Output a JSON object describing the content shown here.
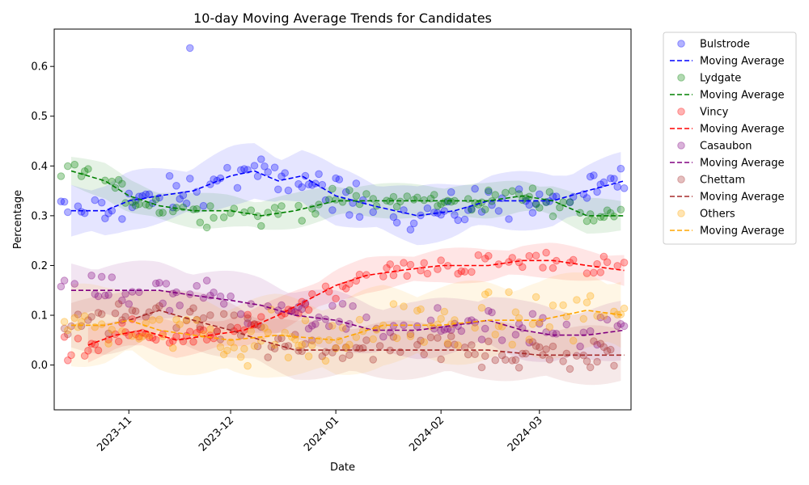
{
  "chart_data": {
    "type": "scatter",
    "title": "10-day Moving Average Trends for Candidates",
    "xlabel": "Date",
    "ylabel": "Percentage",
    "x_range": [
      "2023-10-10",
      "2024-03-28"
    ],
    "ylim": [
      -0.09,
      0.675
    ],
    "y_ticks": [
      0.0,
      0.1,
      0.2,
      0.3,
      0.4,
      0.5,
      0.6
    ],
    "x_ticks": [
      "2023-11",
      "2023-12",
      "2024-01",
      "2024-02",
      "2024-03"
    ],
    "x_tick_rotation_deg": 45,
    "grid": false,
    "legend_placement": "outside-right",
    "series": [
      {
        "name": "Bulstrode",
        "ma_label": "Moving Average",
        "color": "#0000ff",
        "band_color": "#b3b3f5",
        "ma_points": [
          [
            "2023-10-15",
            0.31
          ],
          [
            "2023-10-25",
            0.31
          ],
          [
            "2023-11-01",
            0.33
          ],
          [
            "2023-11-10",
            0.34
          ],
          [
            "2023-11-20",
            0.35
          ],
          [
            "2023-12-01",
            0.38
          ],
          [
            "2023-12-08",
            0.39
          ],
          [
            "2023-12-15",
            0.37
          ],
          [
            "2023-12-22",
            0.38
          ],
          [
            "2024-01-01",
            0.34
          ],
          [
            "2024-01-12",
            0.32
          ],
          [
            "2024-01-25",
            0.3
          ],
          [
            "2024-02-05",
            0.31
          ],
          [
            "2024-02-15",
            0.33
          ],
          [
            "2024-02-25",
            0.33
          ],
          [
            "2024-03-05",
            0.33
          ],
          [
            "2024-03-15",
            0.35
          ],
          [
            "2024-03-26",
            0.37
          ]
        ],
        "band_halfwidth": 0.05,
        "outlier": [
          "2023-11-19",
          0.637
        ]
      },
      {
        "name": "Lydgate",
        "ma_label": "Moving Average",
        "color": "#008000",
        "band_color": "#b3dbb3",
        "ma_points": [
          [
            "2023-10-15",
            0.39
          ],
          [
            "2023-10-25",
            0.37
          ],
          [
            "2023-11-01",
            0.34
          ],
          [
            "2023-11-10",
            0.32
          ],
          [
            "2023-11-20",
            0.31
          ],
          [
            "2023-12-01",
            0.31
          ],
          [
            "2023-12-10",
            0.3
          ],
          [
            "2023-12-20",
            0.31
          ],
          [
            "2024-01-01",
            0.33
          ],
          [
            "2024-01-15",
            0.33
          ],
          [
            "2024-01-25",
            0.33
          ],
          [
            "2024-02-05",
            0.33
          ],
          [
            "2024-02-15",
            0.33
          ],
          [
            "2024-02-25",
            0.34
          ],
          [
            "2024-03-05",
            0.33
          ],
          [
            "2024-03-15",
            0.3
          ],
          [
            "2024-03-26",
            0.3
          ]
        ],
        "band_halfwidth": 0.03
      },
      {
        "name": "Vincy",
        "ma_label": "Moving Average",
        "color": "#ff0000",
        "band_color": "#f8c0c0",
        "ma_points": [
          [
            "2023-10-20",
            0.04
          ],
          [
            "2023-10-28",
            0.06
          ],
          [
            "2023-11-05",
            0.07
          ],
          [
            "2023-11-15",
            0.05
          ],
          [
            "2023-11-25",
            0.06
          ],
          [
            "2023-12-05",
            0.07
          ],
          [
            "2023-12-15",
            0.1
          ],
          [
            "2024-01-01",
            0.16
          ],
          [
            "2024-01-10",
            0.18
          ],
          [
            "2024-01-20",
            0.19
          ],
          [
            "2024-02-01",
            0.2
          ],
          [
            "2024-02-15",
            0.2
          ],
          [
            "2024-02-25",
            0.21
          ],
          [
            "2024-03-05",
            0.21
          ],
          [
            "2024-03-15",
            0.2
          ],
          [
            "2024-03-26",
            0.19
          ]
        ],
        "band_halfwidth": 0.03
      },
      {
        "name": "Casaubon",
        "ma_label": "Moving Average",
        "color": "#800080",
        "band_color": "#dcc0dc",
        "ma_points": [
          [
            "2023-10-15",
            0.15
          ],
          [
            "2023-10-25",
            0.15
          ],
          [
            "2023-11-01",
            0.15
          ],
          [
            "2023-11-10",
            0.15
          ],
          [
            "2023-11-20",
            0.14
          ],
          [
            "2023-12-01",
            0.13
          ],
          [
            "2023-12-10",
            0.12
          ],
          [
            "2023-12-20",
            0.1
          ],
          [
            "2024-01-01",
            0.09
          ],
          [
            "2024-01-12",
            0.07
          ],
          [
            "2024-01-25",
            0.07
          ],
          [
            "2024-02-05",
            0.08
          ],
          [
            "2024-02-15",
            0.09
          ],
          [
            "2024-02-25",
            0.07
          ],
          [
            "2024-03-05",
            0.06
          ],
          [
            "2024-03-15",
            0.06
          ],
          [
            "2024-03-26",
            0.07
          ]
        ],
        "band_halfwidth": 0.05
      },
      {
        "name": "Chettam",
        "ma_label": "Moving Average",
        "color": "#a52a2a",
        "band_color": "#e8cccc",
        "ma_points": [
          [
            "2023-10-15",
            0.08
          ],
          [
            "2023-10-25",
            0.08
          ],
          [
            "2023-11-01",
            0.09
          ],
          [
            "2023-11-10",
            0.11
          ],
          [
            "2023-11-20",
            0.09
          ],
          [
            "2023-12-01",
            0.07
          ],
          [
            "2023-12-10",
            0.05
          ],
          [
            "2023-12-20",
            0.03
          ],
          [
            "2024-01-01",
            0.03
          ],
          [
            "2024-01-15",
            0.03
          ],
          [
            "2024-02-01",
            0.03
          ],
          [
            "2024-02-15",
            0.03
          ],
          [
            "2024-03-01",
            0.02
          ],
          [
            "2024-03-15",
            0.02
          ],
          [
            "2024-03-26",
            0.02
          ]
        ],
        "band_halfwidth": 0.05
      },
      {
        "name": "Others",
        "ma_label": "Moving Average",
        "color": "#ffa500",
        "band_color": "#ffe5bf",
        "ma_points": [
          [
            "2023-10-15",
            0.08
          ],
          [
            "2023-10-25",
            0.08
          ],
          [
            "2023-11-01",
            0.09
          ],
          [
            "2023-11-10",
            0.07
          ],
          [
            "2023-11-20",
            0.06
          ],
          [
            "2023-12-01",
            0.05
          ],
          [
            "2023-12-15",
            0.06
          ],
          [
            "2024-01-01",
            0.05
          ],
          [
            "2024-01-15",
            0.08
          ],
          [
            "2024-02-01",
            0.08
          ],
          [
            "2024-02-15",
            0.09
          ],
          [
            "2024-03-01",
            0.09
          ],
          [
            "2024-03-15",
            0.11
          ],
          [
            "2024-03-26",
            0.1
          ]
        ],
        "band_halfwidth": 0.07
      }
    ]
  }
}
